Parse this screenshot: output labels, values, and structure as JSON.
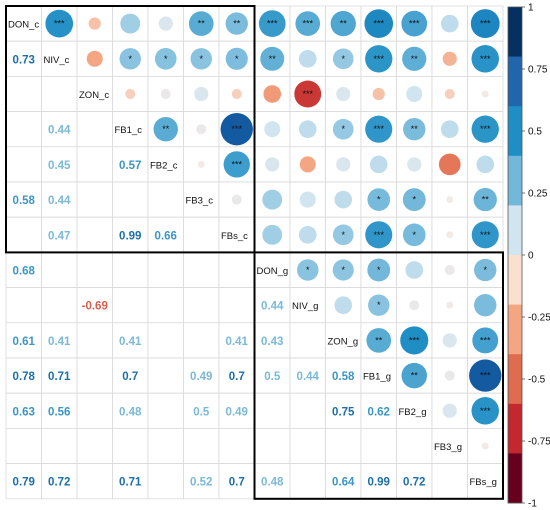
{
  "chart_data": {
    "type": "heatmap",
    "variables": [
      "DON_c",
      "NIV_c",
      "ZON_c",
      "FB1_c",
      "FB2_c",
      "FB3_c",
      "FBs_c",
      "DON_g",
      "NIV_g",
      "ZON_g",
      "FB1_g",
      "FB2_g",
      "FB3_g",
      "FBs_g"
    ],
    "lower_values": [
      [
        null,
        null,
        null,
        null,
        null,
        null,
        null,
        null,
        null,
        null,
        null,
        null,
        null,
        null
      ],
      [
        0.73,
        null,
        null,
        null,
        null,
        null,
        null,
        null,
        null,
        null,
        null,
        null,
        null,
        null
      ],
      [
        null,
        null,
        null,
        null,
        null,
        null,
        null,
        null,
        null,
        null,
        null,
        null,
        null,
        null
      ],
      [
        null,
        0.44,
        null,
        null,
        null,
        null,
        null,
        null,
        null,
        null,
        null,
        null,
        null,
        null
      ],
      [
        null,
        0.45,
        null,
        0.57,
        null,
        null,
        null,
        null,
        null,
        null,
        null,
        null,
        null,
        null
      ],
      [
        0.58,
        0.44,
        null,
        null,
        null,
        null,
        null,
        null,
        null,
        null,
        null,
        null,
        null,
        null
      ],
      [
        null,
        0.47,
        null,
        0.99,
        0.66,
        null,
        null,
        null,
        null,
        null,
        null,
        null,
        null,
        null
      ],
      [
        0.68,
        null,
        null,
        null,
        null,
        null,
        null,
        null,
        null,
        null,
        null,
        null,
        null,
        null
      ],
      [
        null,
        null,
        -0.69,
        null,
        null,
        null,
        null,
        0.44,
        null,
        null,
        null,
        null,
        null,
        null
      ],
      [
        0.61,
        0.41,
        null,
        0.41,
        null,
        null,
        0.41,
        0.43,
        null,
        null,
        null,
        null,
        null,
        null
      ],
      [
        0.78,
        0.71,
        null,
        0.7,
        null,
        0.49,
        0.7,
        0.5,
        0.44,
        0.58,
        null,
        null,
        null,
        null
      ],
      [
        0.63,
        0.56,
        null,
        0.48,
        null,
        0.5,
        0.49,
        null,
        null,
        0.75,
        0.62,
        null,
        null,
        null
      ],
      [
        null,
        null,
        null,
        null,
        null,
        null,
        null,
        null,
        null,
        null,
        null,
        null,
        null,
        null
      ],
      [
        0.79,
        0.72,
        null,
        0.71,
        null,
        0.52,
        0.7,
        0.48,
        null,
        0.64,
        0.99,
        0.72,
        null,
        null
      ]
    ],
    "upper_cells": [
      {
        "row": 0,
        "col": 1,
        "value": 0.73,
        "sig": "***"
      },
      {
        "row": 0,
        "col": 2,
        "value": -0.15,
        "sig": ""
      },
      {
        "row": 0,
        "col": 3,
        "value": 0.38,
        "sig": ""
      },
      {
        "row": 0,
        "col": 4,
        "value": 0.2,
        "sig": ""
      },
      {
        "row": 0,
        "col": 5,
        "value": 0.58,
        "sig": "**"
      },
      {
        "row": 0,
        "col": 6,
        "value": 0.48,
        "sig": "**"
      },
      {
        "row": 0,
        "col": 7,
        "value": 0.68,
        "sig": "***"
      },
      {
        "row": 0,
        "col": 8,
        "value": 0.58,
        "sig": "***"
      },
      {
        "row": 0,
        "col": 9,
        "value": 0.61,
        "sig": "**"
      },
      {
        "row": 0,
        "col": 10,
        "value": 0.78,
        "sig": "***"
      },
      {
        "row": 0,
        "col": 11,
        "value": 0.63,
        "sig": "***"
      },
      {
        "row": 0,
        "col": 12,
        "value": 0.3,
        "sig": ""
      },
      {
        "row": 0,
        "col": 13,
        "value": 0.79,
        "sig": "***"
      },
      {
        "row": 1,
        "col": 2,
        "value": -0.25,
        "sig": ""
      },
      {
        "row": 1,
        "col": 3,
        "value": 0.44,
        "sig": "*"
      },
      {
        "row": 1,
        "col": 4,
        "value": 0.45,
        "sig": "*"
      },
      {
        "row": 1,
        "col": 5,
        "value": 0.44,
        "sig": "*"
      },
      {
        "row": 1,
        "col": 6,
        "value": 0.47,
        "sig": "*"
      },
      {
        "row": 1,
        "col": 7,
        "value": 0.55,
        "sig": "**"
      },
      {
        "row": 1,
        "col": 8,
        "value": 0.3,
        "sig": ""
      },
      {
        "row": 1,
        "col": 9,
        "value": 0.41,
        "sig": "*"
      },
      {
        "row": 1,
        "col": 10,
        "value": 0.71,
        "sig": "***"
      },
      {
        "row": 1,
        "col": 11,
        "value": 0.56,
        "sig": "**"
      },
      {
        "row": 1,
        "col": 12,
        "value": -0.2,
        "sig": ""
      },
      {
        "row": 1,
        "col": 13,
        "value": 0.72,
        "sig": "***"
      },
      {
        "row": 2,
        "col": 3,
        "value": -0.1,
        "sig": ""
      },
      {
        "row": 2,
        "col": 4,
        "value": 0.1,
        "sig": ""
      },
      {
        "row": 2,
        "col": 5,
        "value": 0.2,
        "sig": ""
      },
      {
        "row": 2,
        "col": 6,
        "value": -0.1,
        "sig": ""
      },
      {
        "row": 2,
        "col": 7,
        "value": -0.3,
        "sig": ""
      },
      {
        "row": 2,
        "col": 8,
        "value": -0.69,
        "sig": "***"
      },
      {
        "row": 2,
        "col": 9,
        "value": 0.2,
        "sig": ""
      },
      {
        "row": 2,
        "col": 10,
        "value": -0.15,
        "sig": ""
      },
      {
        "row": 2,
        "col": 11,
        "value": 0.25,
        "sig": ""
      },
      {
        "row": 2,
        "col": 12,
        "value": -0.1,
        "sig": ""
      },
      {
        "row": 2,
        "col": 13,
        "value": 0.05,
        "sig": ""
      },
      {
        "row": 3,
        "col": 4,
        "value": 0.57,
        "sig": "**"
      },
      {
        "row": 3,
        "col": 5,
        "value": 0.1,
        "sig": ""
      },
      {
        "row": 3,
        "col": 6,
        "value": 0.99,
        "sig": "***"
      },
      {
        "row": 3,
        "col": 7,
        "value": 0.25,
        "sig": ""
      },
      {
        "row": 3,
        "col": 8,
        "value": 0.3,
        "sig": ""
      },
      {
        "row": 3,
        "col": 9,
        "value": 0.41,
        "sig": "*"
      },
      {
        "row": 3,
        "col": 10,
        "value": 0.7,
        "sig": "***"
      },
      {
        "row": 3,
        "col": 11,
        "value": 0.48,
        "sig": "**"
      },
      {
        "row": 3,
        "col": 12,
        "value": 0.3,
        "sig": ""
      },
      {
        "row": 3,
        "col": 13,
        "value": 0.71,
        "sig": "***"
      },
      {
        "row": 4,
        "col": 5,
        "value": 0.05,
        "sig": ""
      },
      {
        "row": 4,
        "col": 6,
        "value": 0.66,
        "sig": "***"
      },
      {
        "row": 4,
        "col": 7,
        "value": 0.2,
        "sig": ""
      },
      {
        "row": 4,
        "col": 8,
        "value": -0.25,
        "sig": ""
      },
      {
        "row": 4,
        "col": 9,
        "value": 0.2,
        "sig": ""
      },
      {
        "row": 4,
        "col": 10,
        "value": 0.3,
        "sig": ""
      },
      {
        "row": 4,
        "col": 11,
        "value": 0.2,
        "sig": ""
      },
      {
        "row": 4,
        "col": 12,
        "value": -0.45,
        "sig": ""
      },
      {
        "row": 4,
        "col": 13,
        "value": 0.3,
        "sig": ""
      },
      {
        "row": 5,
        "col": 6,
        "value": 0.1,
        "sig": ""
      },
      {
        "row": 5,
        "col": 7,
        "value": 0.38,
        "sig": ""
      },
      {
        "row": 5,
        "col": 8,
        "value": 0.25,
        "sig": ""
      },
      {
        "row": 5,
        "col": 9,
        "value": 0.3,
        "sig": ""
      },
      {
        "row": 5,
        "col": 10,
        "value": 0.49,
        "sig": "*"
      },
      {
        "row": 5,
        "col": 11,
        "value": 0.5,
        "sig": "*"
      },
      {
        "row": 5,
        "col": 12,
        "value": 0.05,
        "sig": ""
      },
      {
        "row": 5,
        "col": 13,
        "value": 0.52,
        "sig": "**"
      },
      {
        "row": 6,
        "col": 7,
        "value": 0.38,
        "sig": ""
      },
      {
        "row": 6,
        "col": 8,
        "value": 0.3,
        "sig": ""
      },
      {
        "row": 6,
        "col": 9,
        "value": 0.41,
        "sig": "*"
      },
      {
        "row": 6,
        "col": 10,
        "value": 0.7,
        "sig": "***"
      },
      {
        "row": 6,
        "col": 11,
        "value": 0.49,
        "sig": "*"
      },
      {
        "row": 6,
        "col": 12,
        "value": 0.05,
        "sig": ""
      },
      {
        "row": 6,
        "col": 13,
        "value": 0.7,
        "sig": "***"
      },
      {
        "row": 7,
        "col": 8,
        "value": 0.44,
        "sig": "*"
      },
      {
        "row": 7,
        "col": 9,
        "value": 0.43,
        "sig": "*"
      },
      {
        "row": 7,
        "col": 10,
        "value": 0.5,
        "sig": "*"
      },
      {
        "row": 7,
        "col": 11,
        "value": 0.3,
        "sig": ""
      },
      {
        "row": 7,
        "col": 12,
        "value": 0.1,
        "sig": ""
      },
      {
        "row": 7,
        "col": 13,
        "value": 0.48,
        "sig": "*"
      },
      {
        "row": 8,
        "col": 9,
        "value": 0.3,
        "sig": ""
      },
      {
        "row": 8,
        "col": 10,
        "value": 0.44,
        "sig": "*"
      },
      {
        "row": 8,
        "col": 11,
        "value": 0.1,
        "sig": ""
      },
      {
        "row": 8,
        "col": 12,
        "value": 0.05,
        "sig": ""
      },
      {
        "row": 8,
        "col": 13,
        "value": 0.48,
        "sig": ""
      },
      {
        "row": 9,
        "col": 10,
        "value": 0.58,
        "sig": "**"
      },
      {
        "row": 9,
        "col": 11,
        "value": 0.75,
        "sig": "***"
      },
      {
        "row": 9,
        "col": 12,
        "value": 0.2,
        "sig": ""
      },
      {
        "row": 9,
        "col": 13,
        "value": 0.64,
        "sig": "***"
      },
      {
        "row": 10,
        "col": 11,
        "value": 0.62,
        "sig": "**"
      },
      {
        "row": 10,
        "col": 12,
        "value": 0.1,
        "sig": ""
      },
      {
        "row": 10,
        "col": 13,
        "value": 0.99,
        "sig": "***"
      },
      {
        "row": 11,
        "col": 12,
        "value": 0.2,
        "sig": ""
      },
      {
        "row": 11,
        "col": 13,
        "value": 0.72,
        "sig": "***"
      },
      {
        "row": 12,
        "col": 13,
        "value": 0.05,
        "sig": ""
      }
    ],
    "colorbar": {
      "ticks": [
        "1",
        "0.75",
        "0.5",
        "0.25",
        "0",
        "-0.25",
        "-0.5",
        "-0.75",
        "-1"
      ],
      "colors": [
        "#053061",
        "#2166ac",
        "#1f8ec5",
        "#73b8da",
        "#d1e5f0",
        "#fbdfcf",
        "#f4a582",
        "#e06c4f",
        "#c3282e",
        "#67001f"
      ]
    },
    "clusters": [
      {
        "start": 0,
        "end": 6
      },
      {
        "start": 7,
        "end": 13
      }
    ]
  }
}
